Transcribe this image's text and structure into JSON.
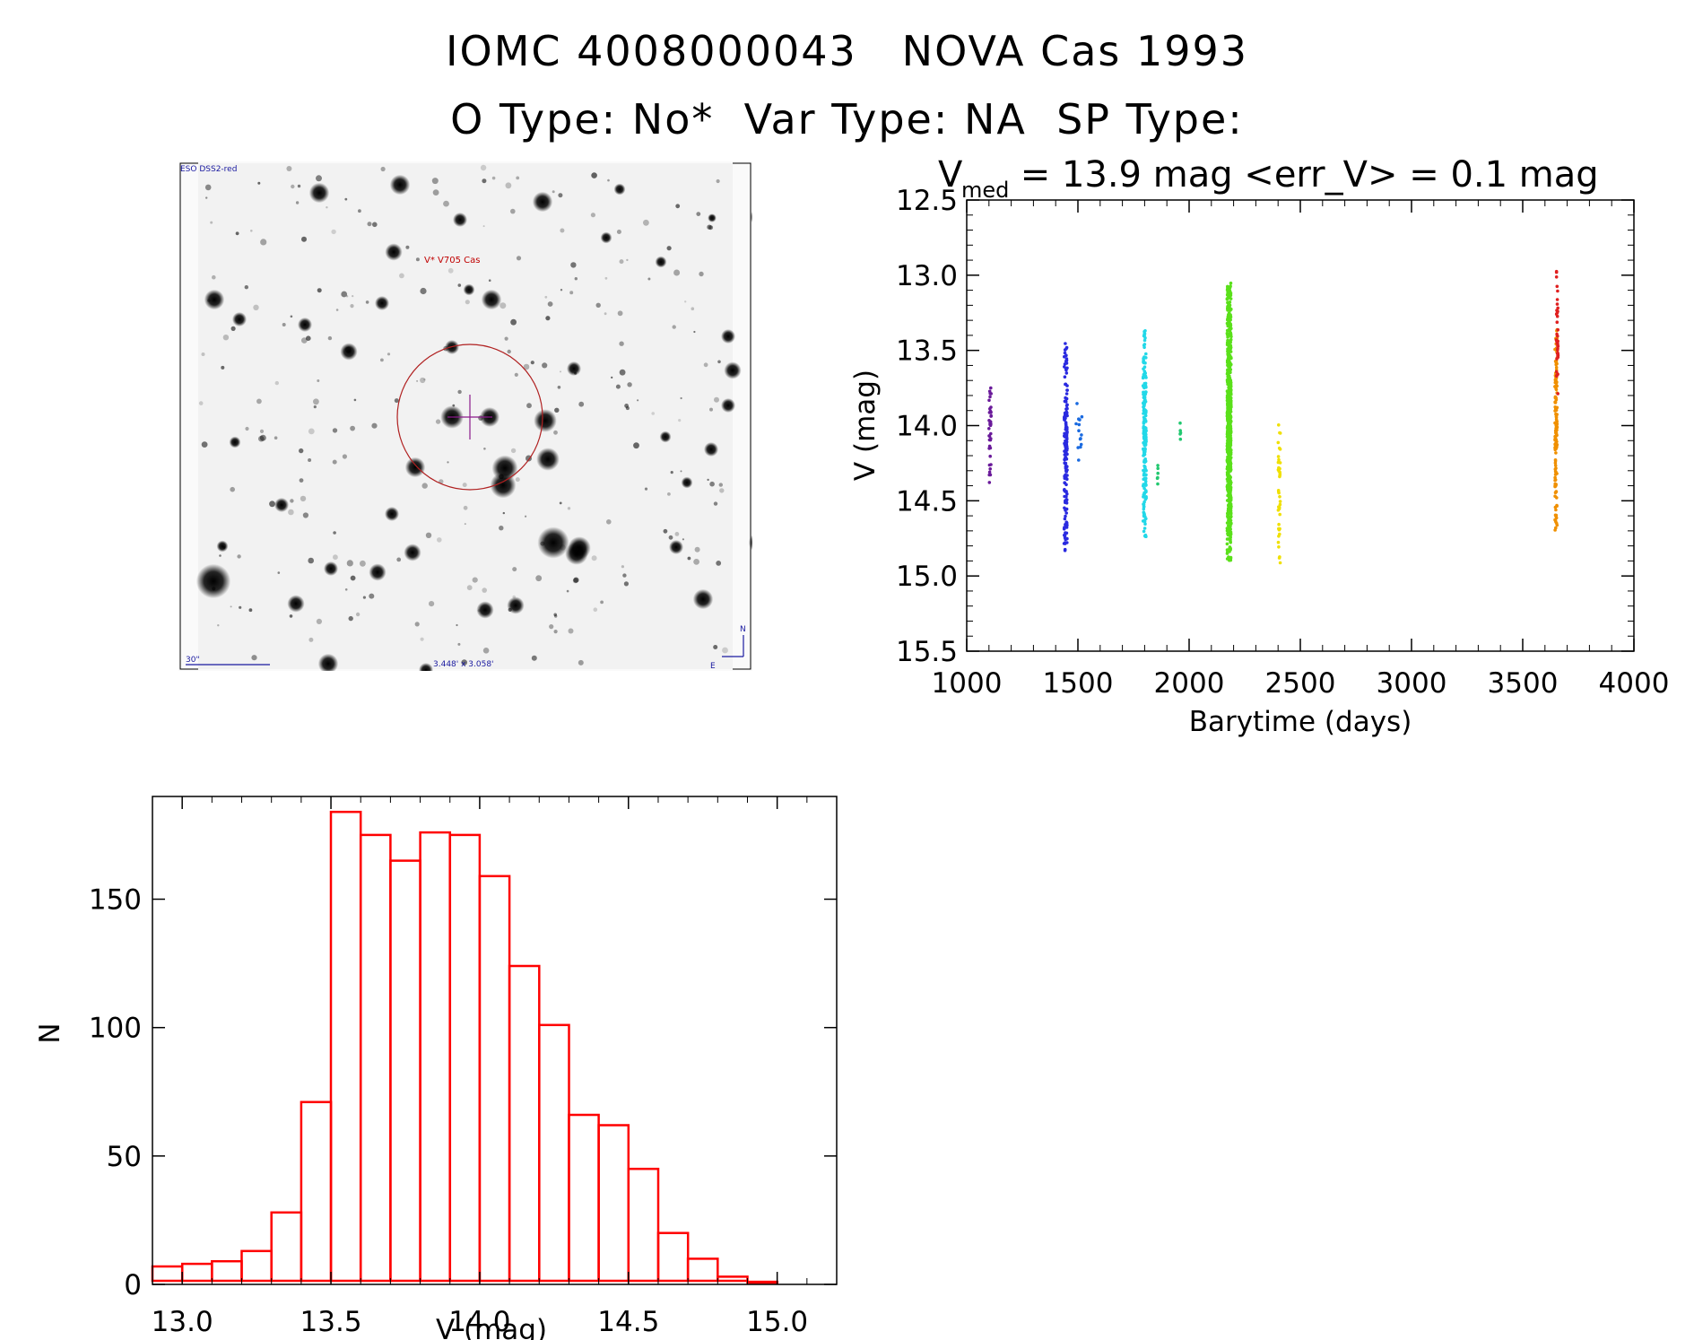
{
  "header": {
    "title_line1": "IOMC 4008000043   NOVA Cas 1993",
    "title_line2": "O Type: No*  Var Type: NA  SP Type:"
  },
  "finder_chart": {
    "survey_label": "ESO DSS2-red",
    "target_label": "V* V705 Cas",
    "scale_label": "30\"",
    "fov_label": "3.448' x 3.058'",
    "north_label": "N",
    "east_label": "E",
    "colors": {
      "label": "#1a1aa0",
      "target": "#c00000",
      "marker": "#8a1a8a"
    }
  },
  "chart_data": [
    {
      "type": "scatter",
      "title_main": "V",
      "title_sub": "med",
      "title_rest": " = 13.9 mag <err_V> = 0.1 mag",
      "xlabel": "Barytime (days)",
      "ylabel": "V (mag)",
      "xlim": [
        1000,
        4000
      ],
      "ylim": [
        15.5,
        12.5
      ],
      "y_inverted": true,
      "xticks": [
        "1000",
        "1500",
        "2000",
        "2500",
        "3000",
        "3500",
        "4000"
      ],
      "yticks": [
        "12.5",
        "13.0",
        "13.5",
        "14.0",
        "14.5",
        "15.0",
        "15.5"
      ],
      "grid": false,
      "groups": [
        {
          "color": "#6a1a9a",
          "x_center": 1105,
          "x_spread": 10,
          "y_min": 13.7,
          "y_max": 14.4,
          "count": 40
        },
        {
          "color": "#2a2ae0",
          "x_center": 1445,
          "x_spread": 14,
          "y_min": 13.45,
          "y_max": 14.85,
          "count": 160
        },
        {
          "color": "#1a6ae0",
          "x_center": 1505,
          "x_spread": 30,
          "y_min": 13.8,
          "y_max": 14.3,
          "count": 14
        },
        {
          "color": "#22d8e8",
          "x_center": 1800,
          "x_spread": 14,
          "y_min": 13.35,
          "y_max": 14.75,
          "count": 200
        },
        {
          "color": "#22c870",
          "x_center": 1860,
          "x_spread": 10,
          "y_min": 14.25,
          "y_max": 14.4,
          "count": 6
        },
        {
          "color": "#22c870",
          "x_center": 1960,
          "x_spread": 6,
          "y_min": 13.9,
          "y_max": 14.1,
          "count": 5
        },
        {
          "color": "#5ae01a",
          "x_center": 2180,
          "x_spread": 18,
          "y_min": 13.05,
          "y_max": 14.9,
          "count": 650
        },
        {
          "color": "#f0e000",
          "x_center": 2405,
          "x_spread": 10,
          "y_min": 13.85,
          "y_max": 15.0,
          "count": 40
        },
        {
          "color": "#f09000",
          "x_center": 3650,
          "x_spread": 10,
          "y_min": 13.3,
          "y_max": 14.7,
          "count": 150
        },
        {
          "color": "#e02020",
          "x_center": 3655,
          "x_spread": 8,
          "y_min": 12.95,
          "y_max": 13.8,
          "count": 40
        }
      ]
    },
    {
      "type": "bar",
      "subtype": "histogram",
      "xlabel": "V (mag)",
      "ylabel": "N",
      "xlim": [
        12.9,
        15.2
      ],
      "ylim": [
        0,
        190
      ],
      "xticks": [
        "13.0",
        "13.5",
        "14.0",
        "14.5",
        "15.0"
      ],
      "yticks": [
        "0",
        "50",
        "100",
        "150"
      ],
      "bin_width": 0.1,
      "bin_start": 12.9,
      "values": [
        7,
        8,
        9,
        13,
        28,
        71,
        184,
        175,
        165,
        176,
        175,
        159,
        124,
        101,
        66,
        62,
        45,
        20,
        10,
        3,
        1
      ],
      "color": "#ff0000"
    }
  ]
}
